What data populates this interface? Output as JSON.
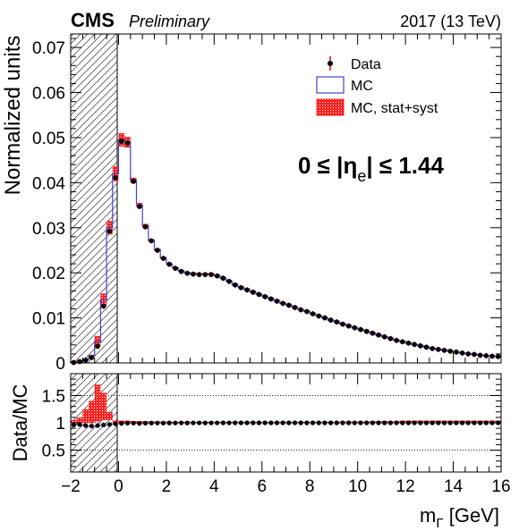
{
  "header": {
    "experiment": "CMS",
    "status": "Preliminary",
    "lumi": "2017 (13 TeV)"
  },
  "annotation": {
    "eta_range": "0 ≤ |η",
    "eta_sub": "e",
    "eta_close": "| ≤ 1.44"
  },
  "chart_data": [
    {
      "type": "line",
      "panel": "main",
      "ylabel": "Normalized units",
      "xlim": [
        -2,
        16
      ],
      "ylim": [
        0,
        0.073
      ],
      "yticks": [
        "0",
        "0.01",
        "0.02",
        "0.03",
        "0.04",
        "0.05",
        "0.06",
        "0.07"
      ],
      "bin_width": 0.25,
      "bin_start": -1.875,
      "excluded_region": [
        -2,
        0
      ],
      "legend": {
        "placement": "top-right",
        "entries": [
          "Data",
          "MC",
          "MC, stat+syst"
        ]
      },
      "series": [
        {
          "name": "Data",
          "style": "points",
          "values": [
            0.0001,
            0.0003,
            0.0006,
            0.0012,
            0.0037,
            0.0126,
            0.0292,
            0.0411,
            0.0492,
            0.0488,
            0.0403,
            0.0347,
            0.0302,
            0.0271,
            0.025,
            0.0232,
            0.0219,
            0.021,
            0.0203,
            0.0199,
            0.0197,
            0.0196,
            0.0196,
            0.0196,
            0.0193,
            0.0188,
            0.0181,
            0.0173,
            0.0167,
            0.0162,
            0.0157,
            0.0152,
            0.0147,
            0.0142,
            0.0137,
            0.0132,
            0.0128,
            0.0123,
            0.0118,
            0.0114,
            0.0109,
            0.0104,
            0.01,
            0.0095,
            0.0091,
            0.0086,
            0.0082,
            0.0078,
            0.0074,
            0.007,
            0.0066,
            0.0062,
            0.0058,
            0.0054,
            0.005,
            0.0047,
            0.0044,
            0.0041,
            0.0038,
            0.0035,
            0.0032,
            0.003,
            0.0028,
            0.0026,
            0.0024,
            0.0022,
            0.002,
            0.0019,
            0.0017,
            0.0016,
            0.0015,
            0.0014
          ]
        },
        {
          "name": "MC",
          "style": "step",
          "color": "#4444cc",
          "values": [
            0.0001,
            0.0003,
            0.0007,
            0.0015,
            0.0048,
            0.014,
            0.03,
            0.042,
            0.0495,
            0.049,
            0.0405,
            0.035,
            0.0304,
            0.0272,
            0.0251,
            0.0233,
            0.022,
            0.0211,
            0.0204,
            0.02,
            0.0197,
            0.0196,
            0.0196,
            0.0196,
            0.0193,
            0.0188,
            0.0181,
            0.0173,
            0.0167,
            0.0162,
            0.0157,
            0.0152,
            0.0147,
            0.0142,
            0.0137,
            0.0132,
            0.0128,
            0.0123,
            0.0118,
            0.0114,
            0.0109,
            0.0104,
            0.01,
            0.0095,
            0.0091,
            0.0086,
            0.0082,
            0.0078,
            0.0074,
            0.007,
            0.0066,
            0.0062,
            0.0058,
            0.0054,
            0.005,
            0.0047,
            0.0044,
            0.0041,
            0.0038,
            0.0035,
            0.0032,
            0.003,
            0.0028,
            0.0026,
            0.0024,
            0.0022,
            0.002,
            0.0019,
            0.0017,
            0.0016,
            0.0015,
            0.0014
          ]
        },
        {
          "name": "MC, stat+syst",
          "style": "band",
          "color": "#ff0000",
          "relative_uncertainty": [
            0.3,
            0.3,
            0.2,
            0.2,
            0.25,
            0.1,
            0.05,
            0.04,
            0.03,
            0.025,
            0.015,
            0.015,
            0.015,
            0.012,
            0.012,
            0.012,
            0.01,
            0.01,
            0.01,
            0.01,
            0.01,
            0.01,
            0.01,
            0.01,
            0.01,
            0.01,
            0.01,
            0.01,
            0.01,
            0.01,
            0.01,
            0.01,
            0.01,
            0.01,
            0.01,
            0.01,
            0.01,
            0.01,
            0.01,
            0.01,
            0.01,
            0.01,
            0.01,
            0.01,
            0.01,
            0.012,
            0.012,
            0.012,
            0.012,
            0.012,
            0.015,
            0.015,
            0.015,
            0.015,
            0.015,
            0.02,
            0.02,
            0.02,
            0.02,
            0.02,
            0.025,
            0.025,
            0.025,
            0.025,
            0.025,
            0.03,
            0.03,
            0.03,
            0.03,
            0.03,
            0.03,
            0.03
          ]
        }
      ]
    },
    {
      "type": "line",
      "panel": "ratio",
      "ylabel": "Data/MC",
      "xlabel": "m",
      "xlabel_sub": "Γ",
      "xlabel_unit": " [GeV]",
      "xlim": [
        -2,
        16
      ],
      "ylim": [
        0.1,
        1.9
      ],
      "yticks": [
        "0.5",
        "1",
        "1.5"
      ],
      "xticks": [
        "−2",
        "0",
        "2",
        "4",
        "6",
        "8",
        "10",
        "12",
        "14",
        "16"
      ],
      "reference_lines": [
        0.5,
        1.0,
        1.5
      ],
      "ratio_values": [
        0.96,
        0.97,
        0.95,
        0.94,
        0.95,
        0.96,
        0.97,
        0.98,
        0.99,
        0.995,
        0.995,
        0.99,
        0.993,
        0.996,
        0.997,
        0.996,
        0.998,
        0.997,
        0.999,
        0.998,
        0.999,
        0.999,
        0.998,
        0.999,
        0.999,
        1.0,
        0.999,
        1.0,
        1.0,
        1.0,
        1.0,
        1.0,
        1.0,
        1.0,
        1.0,
        1.0,
        1.0,
        1.0,
        1.0,
        1.0,
        1.0,
        1.0,
        1.0,
        1.0,
        1.0,
        1.0,
        1.0,
        1.0,
        1.0,
        1.0,
        1.0,
        1.0,
        1.0,
        1.0,
        1.0,
        1.0,
        1.0,
        1.0,
        1.0,
        1.0,
        1.0,
        1.0,
        1.0,
        1.0,
        1.0,
        1.0,
        1.0,
        1.0,
        1.0,
        1.0,
        1.0,
        1.0
      ],
      "band_low": [
        1.0,
        1.0,
        1.0,
        1.0,
        1.02,
        1.05,
        1.05,
        1.05,
        1.0,
        1.0,
        1.0,
        1.0,
        1.0,
        1.0,
        1.0,
        1.0,
        1.0,
        1.0,
        1.0,
        1.0,
        1.0,
        1.0,
        1.0,
        1.0,
        1.0,
        1.0,
        1.0,
        1.0,
        1.0,
        1.0,
        1.0,
        1.0,
        1.0,
        1.0,
        1.0,
        1.0,
        1.0,
        1.0,
        1.0,
        1.0,
        1.0,
        1.0,
        1.0,
        1.0,
        1.0,
        1.0,
        1.0,
        1.0,
        1.0,
        1.0,
        1.0,
        1.0,
        1.0,
        1.0,
        1.0,
        1.0,
        1.0,
        1.0,
        1.0,
        1.0,
        1.0,
        1.0,
        1.0,
        1.0,
        1.0,
        1.0,
        1.0,
        1.0,
        1.0,
        1.0,
        1.0,
        1.0
      ],
      "band_high": [
        1.05,
        1.1,
        1.25,
        1.4,
        1.7,
        1.55,
        1.2,
        1.02,
        1.0,
        1.0,
        1.0,
        1.0,
        1.0,
        1.0,
        1.0,
        1.0,
        1.0,
        1.0,
        1.0,
        1.0,
        1.0,
        1.0,
        1.0,
        1.0,
        1.0,
        1.0,
        1.0,
        1.0,
        1.0,
        1.0,
        1.0,
        1.0,
        1.0,
        1.0,
        1.0,
        1.0,
        1.0,
        1.0,
        1.0,
        1.0,
        1.0,
        1.0,
        1.0,
        1.0,
        1.0,
        1.0,
        1.0,
        1.0,
        1.0,
        1.0,
        1.0,
        1.0,
        1.0,
        1.0,
        1.0,
        1.0,
        1.0,
        1.0,
        1.0,
        1.0,
        1.0,
        1.0,
        1.0,
        1.0,
        1.0,
        1.0,
        1.0,
        1.0,
        1.0,
        1.0,
        1.0,
        1.0
      ]
    }
  ]
}
